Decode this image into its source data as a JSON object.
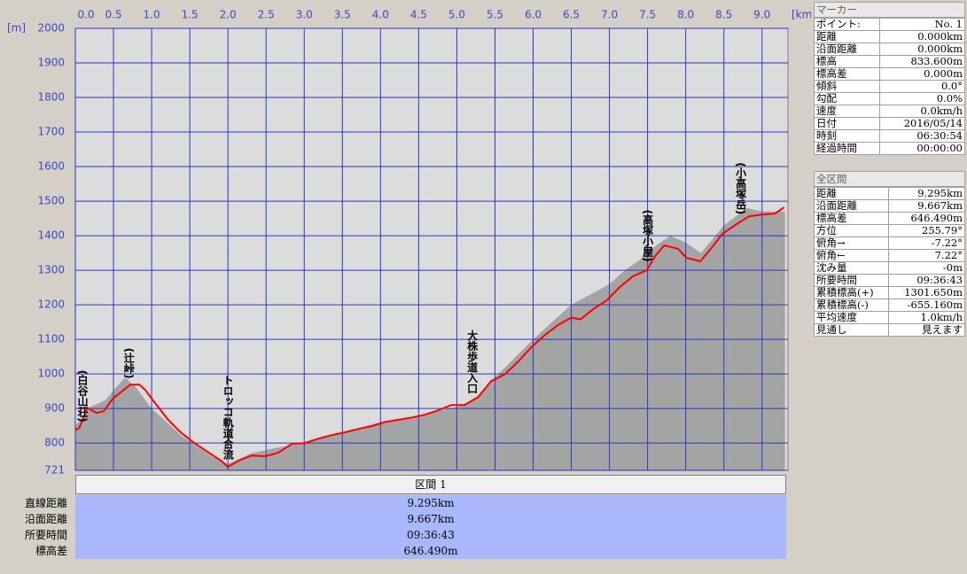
{
  "chart_data": {
    "type": "line",
    "xlabel": "[km]",
    "ylabel": "[m]",
    "xlim": [
      0,
      9.34
    ],
    "ylim": [
      721,
      2000
    ],
    "xticks": [
      {
        "value": 0,
        "label": "0.0"
      },
      0.5,
      {
        "value": 1,
        "label": "1.0"
      },
      1.5,
      {
        "value": 2,
        "label": "2.0"
      },
      2.5,
      {
        "value": 3,
        "label": "3.0"
      },
      3.5,
      {
        "value": 4,
        "label": "4.0"
      },
      4.5,
      {
        "value": 5,
        "label": "5.0"
      },
      5.5,
      {
        "value": 6,
        "label": "6.0"
      },
      6.5,
      {
        "value": 7,
        "label": "7.0"
      },
      7.5,
      {
        "value": 8,
        "label": "8.0"
      },
      8.5,
      {
        "value": 9,
        "label": "9.0"
      }
    ],
    "yticks": [
      721,
      800,
      900,
      1000,
      1100,
      1200,
      1300,
      1400,
      1500,
      1600,
      1700,
      1800,
      1900,
      2000
    ],
    "grid": true,
    "series": [
      {
        "style": "area",
        "color": "#a4a4a4",
        "x": [
          0,
          0.2,
          0.4,
          0.55,
          0.65,
          0.8,
          1.0,
          1.2,
          1.4,
          1.6,
          1.8,
          2.0,
          2.3,
          2.6,
          3.0,
          3.5,
          4.0,
          4.5,
          5.0,
          5.2,
          5.5,
          6.0,
          6.5,
          7.0,
          7.2,
          7.4,
          7.6,
          7.8,
          8.0,
          8.2,
          8.5,
          8.8,
          9.0,
          9.3
        ],
        "values": [
          850,
          905,
          925,
          965,
          990,
          960,
          900,
          860,
          820,
          790,
          760,
          740,
          770,
          785,
          800,
          830,
          860,
          880,
          905,
          920,
          990,
          1100,
          1200,
          1260,
          1300,
          1330,
          1370,
          1400,
          1380,
          1350,
          1430,
          1480,
          1470,
          1470
        ]
      },
      {
        "style": "line",
        "color": "#ff0000",
        "x": [
          0,
          0.05,
          0.16,
          0.28,
          0.37,
          0.49,
          0.63,
          0.72,
          0.84,
          0.92,
          1.03,
          1.21,
          1.38,
          1.56,
          1.73,
          1.91,
          2.0,
          2.14,
          2.31,
          2.49,
          2.66,
          2.84,
          3.01,
          3.19,
          3.36,
          3.53,
          3.71,
          3.88,
          4.06,
          4.23,
          4.41,
          4.58,
          4.76,
          4.93,
          5.1,
          5.28,
          5.45,
          5.63,
          5.8,
          5.98,
          6.15,
          6.33,
          6.5,
          6.62,
          6.79,
          6.97,
          7.14,
          7.31,
          7.49,
          7.6,
          7.72,
          7.9,
          8.01,
          8.19,
          8.3,
          8.48,
          8.65,
          8.83,
          9.0,
          9.17,
          9.29
        ],
        "values": [
          838,
          843,
          902,
          887,
          892,
          928,
          953,
          969,
          969,
          953,
          920,
          869,
          831,
          800,
          775,
          749,
          731,
          749,
          764,
          762,
          772,
          798,
          800,
          813,
          823,
          831,
          841,
          849,
          861,
          867,
          874,
          882,
          895,
          910,
          910,
          933,
          979,
          999,
          1035,
          1078,
          1112,
          1142,
          1163,
          1158,
          1188,
          1214,
          1252,
          1283,
          1300,
          1341,
          1372,
          1362,
          1336,
          1326,
          1354,
          1405,
          1431,
          1456,
          1461,
          1464,
          1482
        ]
      }
    ],
    "annotations": [
      {
        "text": "(白谷山荘)",
        "x": 0.02
      },
      {
        "text": "(辻峠)",
        "x": 0.7
      },
      {
        "text": "トロッコ軌道合流",
        "x": 2.0
      },
      {
        "text": "大株歩道入口",
        "x": 5.2
      },
      {
        "text": "(高塚小屋)",
        "x": 7.5
      },
      {
        "text": "(小高塚岳)",
        "x": 8.72
      }
    ]
  },
  "section_table": {
    "header": "区間 1",
    "rows": [
      [
        "直線距離",
        "9.295km"
      ],
      [
        "沿面距離",
        "9.667km"
      ],
      [
        "所要時間",
        "09:36:43"
      ],
      [
        "標高差",
        "646.490m"
      ]
    ]
  },
  "marker_panel": {
    "title": "マーカー",
    "rows": [
      [
        "ポイント:",
        "No. 1"
      ],
      [
        "距離",
        "0.000km"
      ],
      [
        "沿面距離",
        "0.000km"
      ],
      [
        "標高",
        "833.600m"
      ],
      [
        "標高差",
        "0.000m"
      ],
      [
        "傾斜",
        "0.0°"
      ],
      [
        "勾配",
        "0.0%"
      ],
      [
        "速度",
        "0.0km/h"
      ],
      [
        "日付",
        "2016/05/14"
      ],
      [
        "時刻",
        "06:30:54"
      ],
      [
        "経過時間",
        "00:00:00"
      ]
    ]
  },
  "total_panel": {
    "title": "全区間",
    "rows": [
      [
        "距離",
        "9.295km"
      ],
      [
        "沿面距離",
        "9.667km"
      ],
      [
        "標高差",
        "646.490m"
      ],
      [
        "方位",
        "255.79°"
      ],
      [
        "俯角→",
        "-7.22°"
      ],
      [
        "俯角←",
        "7.22°"
      ],
      [
        "沈み量",
        "-0m"
      ],
      [
        "所要時間",
        "09:36:43"
      ],
      [
        "累積標高(+)",
        "1301.650m"
      ],
      [
        "累積標高(-)",
        "-655.160m"
      ],
      [
        "平均速度",
        "1.0km/h"
      ],
      [
        "見通し",
        "見えます"
      ]
    ]
  }
}
